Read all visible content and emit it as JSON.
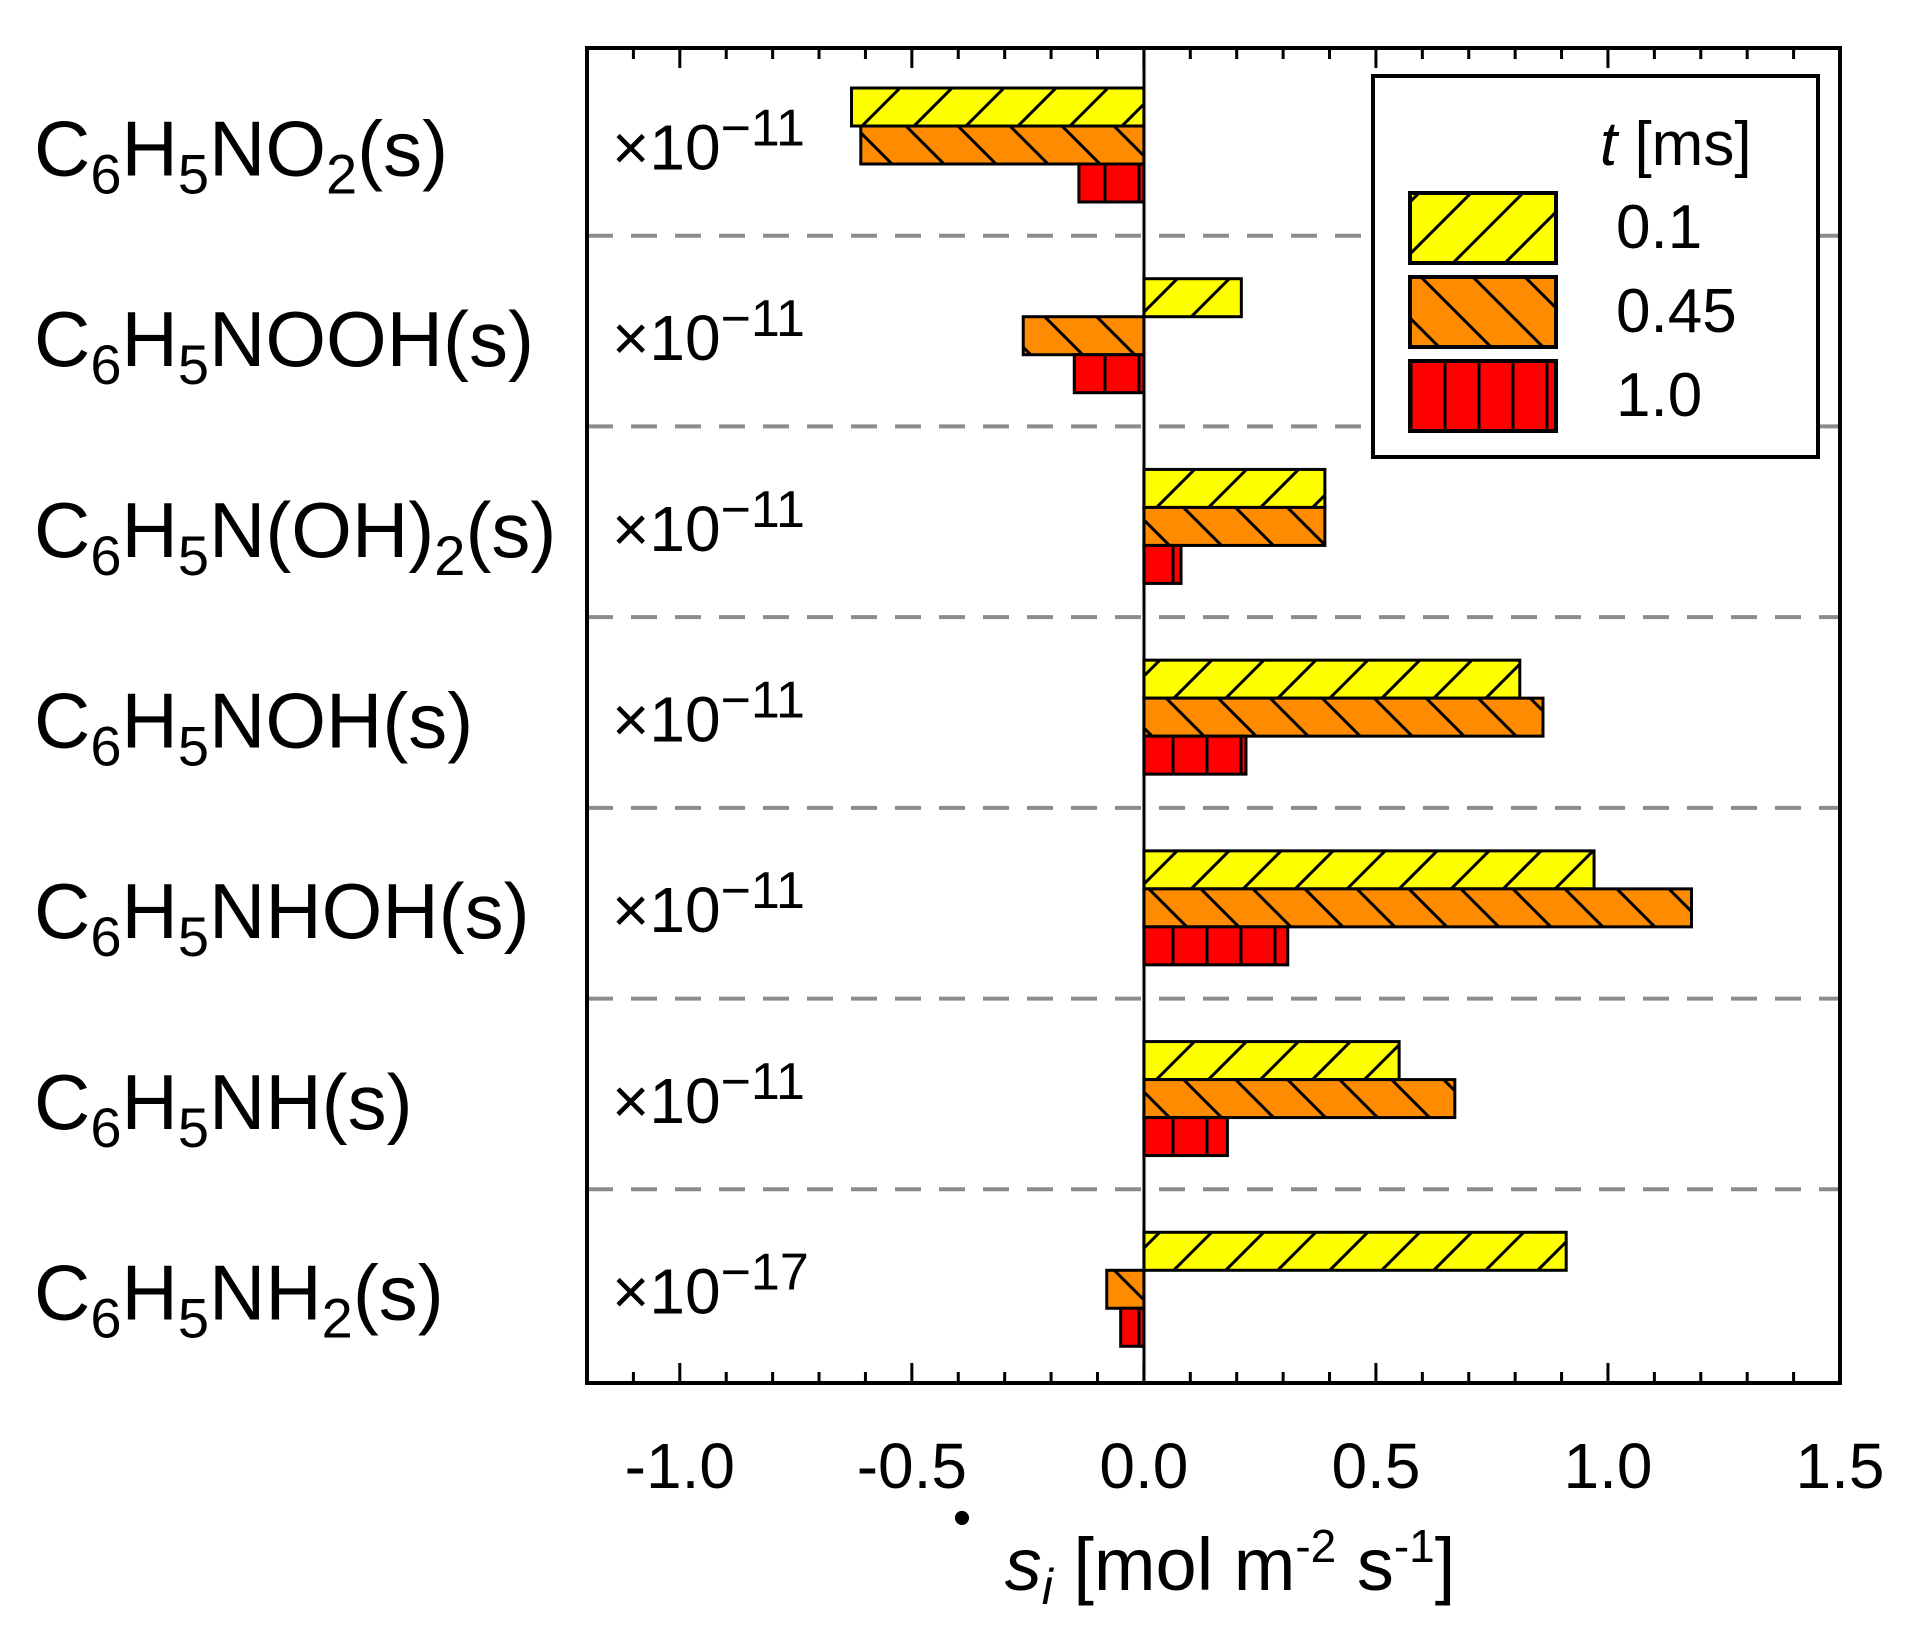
{
  "chart_data": {
    "type": "bar",
    "orientation": "horizontal",
    "xlabel": "ṡᵢ [mol m⁻² s⁻¹]",
    "xlabel_parts": {
      "dot": "•",
      "symbol": "s",
      "index": "i",
      "units": " [mol m",
      "exp1": "-2",
      "mid": " s",
      "exp2": "-1",
      "close": "]"
    },
    "xlim": [
      -1.2,
      1.5
    ],
    "xticks": [
      "-1.0",
      "-0.5",
      "0.0",
      "0.5",
      "1.0",
      "1.5"
    ],
    "xtick_values": [
      -1.0,
      -0.5,
      0.0,
      0.5,
      1.0,
      1.5
    ],
    "categories": [
      {
        "base": "C",
        "s1": "6",
        "m1": "H",
        "s2": "5",
        "rest": "NO",
        "s3": "2",
        "tail": "(s)",
        "scale": "×10",
        "scale_exp": "−11"
      },
      {
        "base": "C",
        "s1": "6",
        "m1": "H",
        "s2": "5",
        "rest": "NOOH(s)",
        "s3": "",
        "tail": "",
        "scale": "×10",
        "scale_exp": "−11"
      },
      {
        "base": "C",
        "s1": "6",
        "m1": "H",
        "s2": "5",
        "rest": "N(OH)",
        "s3": "2",
        "tail": "(s)",
        "scale": "×10",
        "scale_exp": "−11"
      },
      {
        "base": "C",
        "s1": "6",
        "m1": "H",
        "s2": "5",
        "rest": "NOH(s)",
        "s3": "",
        "tail": "",
        "scale": "×10",
        "scale_exp": "−11"
      },
      {
        "base": "C",
        "s1": "6",
        "m1": "H",
        "s2": "5",
        "rest": "NHOH(s)",
        "s3": "",
        "tail": "",
        "scale": "×10",
        "scale_exp": "−11"
      },
      {
        "base": "C",
        "s1": "6",
        "m1": "H",
        "s2": "5",
        "rest": "NH(s)",
        "s3": "",
        "tail": "",
        "scale": "×10",
        "scale_exp": "−11"
      },
      {
        "base": "C",
        "s1": "6",
        "m1": "H",
        "s2": "5",
        "rest": "NH",
        "s3": "2",
        "tail": "(s)",
        "scale": "×10",
        "scale_exp": "−17"
      }
    ],
    "legend": {
      "title_var": "t",
      "title_unit": " [ms]",
      "position": "top-right"
    },
    "series": [
      {
        "name": "0.1",
        "color": "#ffff00",
        "hatch": "forward-diagonal",
        "values": [
          -0.63,
          0.21,
          0.39,
          0.81,
          0.97,
          0.55,
          0.91
        ]
      },
      {
        "name": "0.45",
        "color": "#ff8c00",
        "hatch": "back-diagonal",
        "values": [
          -0.61,
          -0.26,
          0.39,
          0.86,
          1.18,
          0.67,
          -0.08
        ]
      },
      {
        "name": "1.0",
        "color": "#ff0000",
        "hatch": "vertical",
        "values": [
          -0.14,
          -0.15,
          0.08,
          0.22,
          0.31,
          0.18,
          -0.05
        ]
      }
    ],
    "separators": "dashed",
    "grid": false
  }
}
